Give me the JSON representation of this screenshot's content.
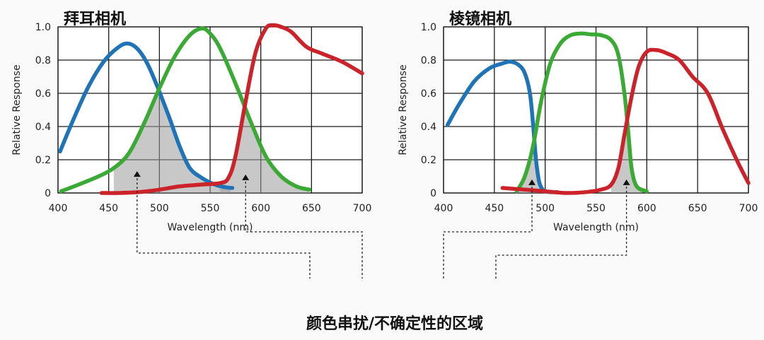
{
  "caption": "颜色串扰/不确定性的区域",
  "colors": {
    "blue": "#1f73b7",
    "green": "#3aaa35",
    "red": "#cc2229",
    "shade": "#9a9a9a"
  },
  "chart_data": [
    {
      "type": "line",
      "title": "拜耳相机",
      "xlabel": "Wavelength (nm)",
      "ylabel": "Relative Response",
      "xlim": [
        400,
        700
      ],
      "ylim": [
        0,
        1.0
      ],
      "x_ticks": [
        "400",
        "450",
        "500",
        "550",
        "600",
        "650",
        "700"
      ],
      "y_ticks": [
        "0",
        "0.2",
        "0.4",
        "0.6",
        "0.8",
        "1.0"
      ],
      "grid": true,
      "series": [
        {
          "color": "blue",
          "x": [
            402,
            415,
            430,
            445,
            458,
            468,
            478,
            488,
            498,
            510,
            520,
            530,
            542,
            555,
            565,
            572
          ],
          "y": [
            0.25,
            0.44,
            0.64,
            0.79,
            0.87,
            0.9,
            0.87,
            0.78,
            0.64,
            0.45,
            0.28,
            0.15,
            0.09,
            0.05,
            0.035,
            0.03
          ]
        },
        {
          "color": "green",
          "x": [
            403,
            420,
            440,
            455,
            470,
            485,
            500,
            515,
            530,
            542,
            550,
            560,
            575,
            590,
            605,
            620,
            635,
            648
          ],
          "y": [
            0.01,
            0.05,
            0.1,
            0.15,
            0.24,
            0.42,
            0.63,
            0.82,
            0.95,
            0.99,
            0.96,
            0.87,
            0.66,
            0.43,
            0.22,
            0.1,
            0.04,
            0.02
          ]
        },
        {
          "color": "red",
          "x": [
            443,
            460,
            480,
            500,
            520,
            540,
            560,
            568,
            575,
            585,
            595,
            605,
            612,
            620,
            630,
            645,
            660,
            680,
            700
          ],
          "y": [
            0.0,
            0.0,
            0.005,
            0.02,
            0.04,
            0.05,
            0.06,
            0.09,
            0.22,
            0.55,
            0.85,
            0.99,
            1.01,
            1.0,
            0.97,
            0.88,
            0.84,
            0.79,
            0.72
          ]
        }
      ],
      "crosstalk_regions": [
        {
          "between": [
            "blue",
            "green"
          ],
          "x_range": [
            455,
            570
          ]
        },
        {
          "between": [
            "green",
            "red"
          ],
          "x_range": [
            560,
            648
          ]
        }
      ],
      "markers": [
        {
          "x": 478,
          "y": 0.11
        },
        {
          "x": 585,
          "y": 0.09
        }
      ]
    },
    {
      "type": "line",
      "title": "棱镜相机",
      "xlabel": "Wavelength (nm)",
      "ylabel": "Relative Response",
      "xlim": [
        400,
        700
      ],
      "ylim": [
        0,
        1.0
      ],
      "x_ticks": [
        "400",
        "450",
        "500",
        "550",
        "600",
        "650",
        "700"
      ],
      "y_ticks": [
        "0",
        "0.2",
        "0.4",
        "0.6",
        "0.8",
        "1.0"
      ],
      "grid": true,
      "series": [
        {
          "color": "blue",
          "x": [
            404,
            415,
            430,
            445,
            458,
            466,
            474,
            480,
            485,
            488,
            491,
            494,
            497,
            500,
            505,
            512
          ],
          "y": [
            0.41,
            0.53,
            0.67,
            0.75,
            0.78,
            0.79,
            0.77,
            0.72,
            0.6,
            0.42,
            0.2,
            0.07,
            0.025,
            0.01,
            0.005,
            0.005
          ]
        },
        {
          "color": "green",
          "x": [
            472,
            480,
            488,
            496,
            505,
            515,
            525,
            535,
            545,
            555,
            565,
            572,
            578,
            582,
            585,
            590,
            600
          ],
          "y": [
            0.01,
            0.1,
            0.28,
            0.55,
            0.78,
            0.9,
            0.95,
            0.96,
            0.955,
            0.95,
            0.92,
            0.83,
            0.6,
            0.35,
            0.15,
            0.04,
            0.01
          ]
        },
        {
          "color": "red",
          "x": [
            458,
            480,
            500,
            520,
            540,
            555,
            565,
            572,
            578,
            585,
            592,
            600,
            610,
            620,
            632,
            645,
            660,
            675,
            690,
            700
          ],
          "y": [
            0.03,
            0.02,
            0.01,
            0.0,
            0.005,
            0.02,
            0.05,
            0.15,
            0.35,
            0.58,
            0.76,
            0.85,
            0.86,
            0.84,
            0.8,
            0.7,
            0.6,
            0.38,
            0.18,
            0.06
          ]
        }
      ],
      "crosstalk_regions": [
        {
          "between": [
            "blue",
            "green"
          ],
          "x_range": [
            472,
            505
          ]
        },
        {
          "between": [
            "green",
            "red"
          ],
          "x_range": [
            565,
            595
          ]
        }
      ],
      "markers": [
        {
          "x": 487,
          "y": 0.06
        },
        {
          "x": 580,
          "y": 0.06
        }
      ]
    }
  ]
}
